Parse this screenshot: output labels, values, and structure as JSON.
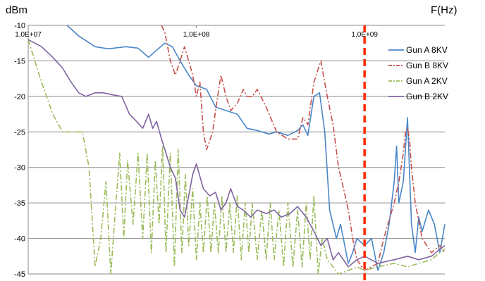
{
  "chart_data": {
    "type": "line",
    "title": "",
    "ylabel": "dBm",
    "xlabel": "F(Hz)",
    "xscale": "log",
    "xlim": [
      10000000,
      3000000000
    ],
    "ylim": [
      -45,
      -10
    ],
    "yticks": [
      -10,
      -15,
      -20,
      -25,
      -30,
      -35,
      -40,
      -45
    ],
    "xticks": [
      {
        "value": 10000000,
        "label": "1,0E+07"
      },
      {
        "value": 100000000,
        "label": "1,0E+08"
      },
      {
        "value": 1000000000,
        "label": "1,0E+09"
      }
    ],
    "grid": "horizontal",
    "legend_position": "right",
    "marker_line": {
      "x": 1000000000,
      "color": "#ff2a00",
      "style": "dashed"
    },
    "series": [
      {
        "name": "Gun A 8KV",
        "color": "#4a86c8",
        "style": "solid",
        "noise": 0,
        "x": [
          17000000,
          20000000,
          25000000,
          30000000,
          38000000,
          45000000,
          52000000,
          58000000,
          65000000,
          72000000,
          80000000,
          90000000,
          100000000,
          115000000,
          130000000,
          150000000,
          175000000,
          200000000,
          230000000,
          270000000,
          300000000,
          350000000,
          400000000,
          430000000,
          460000000,
          500000000,
          540000000,
          580000000,
          620000000,
          680000000,
          720000000,
          800000000,
          850000000,
          900000000,
          1000000000,
          1100000000,
          1200000000,
          1300000000,
          1400000000,
          1500000000,
          1550000000,
          1600000000,
          1700000000,
          1800000000,
          1900000000,
          2000000000,
          2100000000,
          2200000000,
          2400000000,
          2600000000,
          2800000000,
          3000000000
        ],
        "y": [
          -10,
          -11.5,
          -13,
          -13.3,
          -13,
          -13.2,
          -14.5,
          -13.5,
          -12.5,
          -13,
          -15,
          -17,
          -18.5,
          -19,
          -21.5,
          -22,
          -22.5,
          -24.5,
          -24.8,
          -25.3,
          -25,
          -25.5,
          -24.8,
          -24,
          -25.5,
          -20,
          -19.5,
          -25,
          -36,
          -40,
          -38,
          -43.5,
          -42,
          -40,
          -41,
          -40,
          -44.5,
          -42,
          -38,
          -32,
          -27,
          -35,
          -32,
          -23,
          -38,
          -42,
          -37,
          -39,
          -36,
          -38,
          -42,
          -38
        ]
      },
      {
        "name": "Gun B 8KV",
        "color": "#c8504b",
        "style": "dashdot",
        "noise": 0,
        "x": [
          62000000,
          65000000,
          70000000,
          75000000,
          80000000,
          85000000,
          90000000,
          95000000,
          100000000,
          105000000,
          110000000,
          115000000,
          125000000,
          130000000,
          140000000,
          150000000,
          160000000,
          175000000,
          190000000,
          200000000,
          215000000,
          230000000,
          260000000,
          300000000,
          350000000,
          400000000,
          430000000,
          460000000,
          500000000,
          550000000,
          600000000,
          650000000,
          700000000,
          750000000,
          800000000,
          850000000,
          900000000,
          1000000000,
          1100000000,
          1200000000,
          1300000000,
          1500000000,
          1600000000,
          1700000000,
          1750000000,
          1800000000,
          1850000000,
          1900000000,
          2000000000,
          2200000000,
          2500000000,
          2800000000,
          3000000000
        ],
        "y": [
          -10,
          -11,
          -15,
          -17,
          -15,
          -13,
          -15,
          -17,
          -20,
          -18,
          -25,
          -27.5,
          -25,
          -22,
          -17,
          -20,
          -22,
          -21,
          -19,
          -20,
          -20,
          -19,
          -21.5,
          -25,
          -26,
          -26,
          -23,
          -24,
          -18,
          -15,
          -20,
          -24,
          -30,
          -33,
          -36,
          -40,
          -43,
          -44.5,
          -44,
          -43.5,
          -40,
          -35,
          -32,
          -28,
          -25,
          -24.5,
          -26,
          -30,
          -35,
          -40,
          -42,
          -41,
          -42
        ]
      },
      {
        "name": "Gun A 2KV",
        "color": "#9bbb59",
        "style": "dashdot",
        "noise": 0,
        "x": [
          10000000,
          12000000,
          14000000,
          16000000,
          17500000,
          19000000,
          21000000,
          23000000,
          25000000,
          27000000,
          29000000,
          31000000,
          33000000,
          35000000,
          37000000,
          39000000,
          42000000,
          45000000,
          48000000,
          51000000,
          54000000,
          57000000,
          60000000,
          63000000,
          66000000,
          70000000,
          74000000,
          78000000,
          82000000,
          86000000,
          90000000,
          95000000,
          100000000,
          105000000,
          110000000,
          116000000,
          122000000,
          128000000,
          135000000,
          142000000,
          150000000,
          158000000,
          166000000,
          175000000,
          185000000,
          195000000,
          205000000,
          215000000,
          230000000,
          245000000,
          260000000,
          275000000,
          290000000,
          310000000,
          330000000,
          350000000,
          375000000,
          400000000,
          425000000,
          450000000,
          475000000,
          500000000,
          530000000,
          560000000,
          600000000,
          650000000,
          700000000,
          800000000,
          900000000,
          1000000000,
          1200000000,
          1500000000,
          1800000000,
          2100000000,
          2500000000,
          2800000000,
          3000000000
        ],
        "y": [
          -12,
          -18,
          -22.5,
          -25,
          -25,
          -25,
          -25,
          -30,
          -44,
          -40,
          -32,
          -45,
          -36,
          -28,
          -40,
          -29,
          -38,
          -28,
          -40,
          -28,
          -42,
          -29,
          -38,
          -27,
          -42,
          -28,
          -44,
          -27.5,
          -42,
          -31,
          -41,
          -33,
          -43,
          -35,
          -42,
          -34,
          -42,
          -35,
          -42,
          -34,
          -42,
          -35,
          -42,
          -34,
          -43,
          -35,
          -42,
          -35,
          -43,
          -36,
          -43,
          -35,
          -43,
          -36,
          -44,
          -35,
          -44,
          -36,
          -44,
          -35,
          -43,
          -34,
          -45,
          -40,
          -43,
          -44,
          -45,
          -44.5,
          -44,
          -44.5,
          -44,
          -43.5,
          -44,
          -43.5,
          -43,
          -42,
          -41.5
        ]
      },
      {
        "name": "Gun B 2KV",
        "color": "#8064a2",
        "style": "solid",
        "noise": 0,
        "x": [
          10000000,
          12000000,
          14000000,
          16000000,
          18000000,
          20000000,
          22000000,
          25000000,
          28000000,
          32000000,
          36000000,
          40000000,
          44000000,
          48000000,
          52000000,
          55000000,
          58000000,
          62000000,
          66000000,
          70000000,
          75000000,
          80000000,
          85000000,
          90000000,
          95000000,
          100000000,
          110000000,
          120000000,
          130000000,
          140000000,
          150000000,
          160000000,
          175000000,
          190000000,
          210000000,
          230000000,
          260000000,
          290000000,
          320000000,
          360000000,
          400000000,
          450000000,
          500000000,
          550000000,
          600000000,
          650000000,
          700000000,
          800000000,
          900000000,
          1000000000,
          1200000000,
          1500000000,
          1800000000,
          2100000000,
          2500000000,
          2800000000,
          3000000000
        ],
        "y": [
          -12,
          -13,
          -14.5,
          -16,
          -18,
          -19.5,
          -20,
          -19.5,
          -19.5,
          -19.8,
          -20,
          -22.5,
          -23.5,
          -24.5,
          -22.5,
          -24.5,
          -23.5,
          -26,
          -28,
          -30,
          -31.5,
          -36,
          -37,
          -34,
          -31,
          -29.5,
          -33,
          -34,
          -33.5,
          -36,
          -35,
          -33,
          -35.5,
          -36,
          -37,
          -36,
          -36.5,
          -36,
          -37,
          -36.5,
          -35.5,
          -37,
          -39,
          -41,
          -40,
          -43,
          -42,
          -44,
          -43,
          -42.5,
          -43.5,
          -43,
          -42.5,
          -43,
          -42.5,
          -41.5,
          -41
        ]
      }
    ]
  }
}
